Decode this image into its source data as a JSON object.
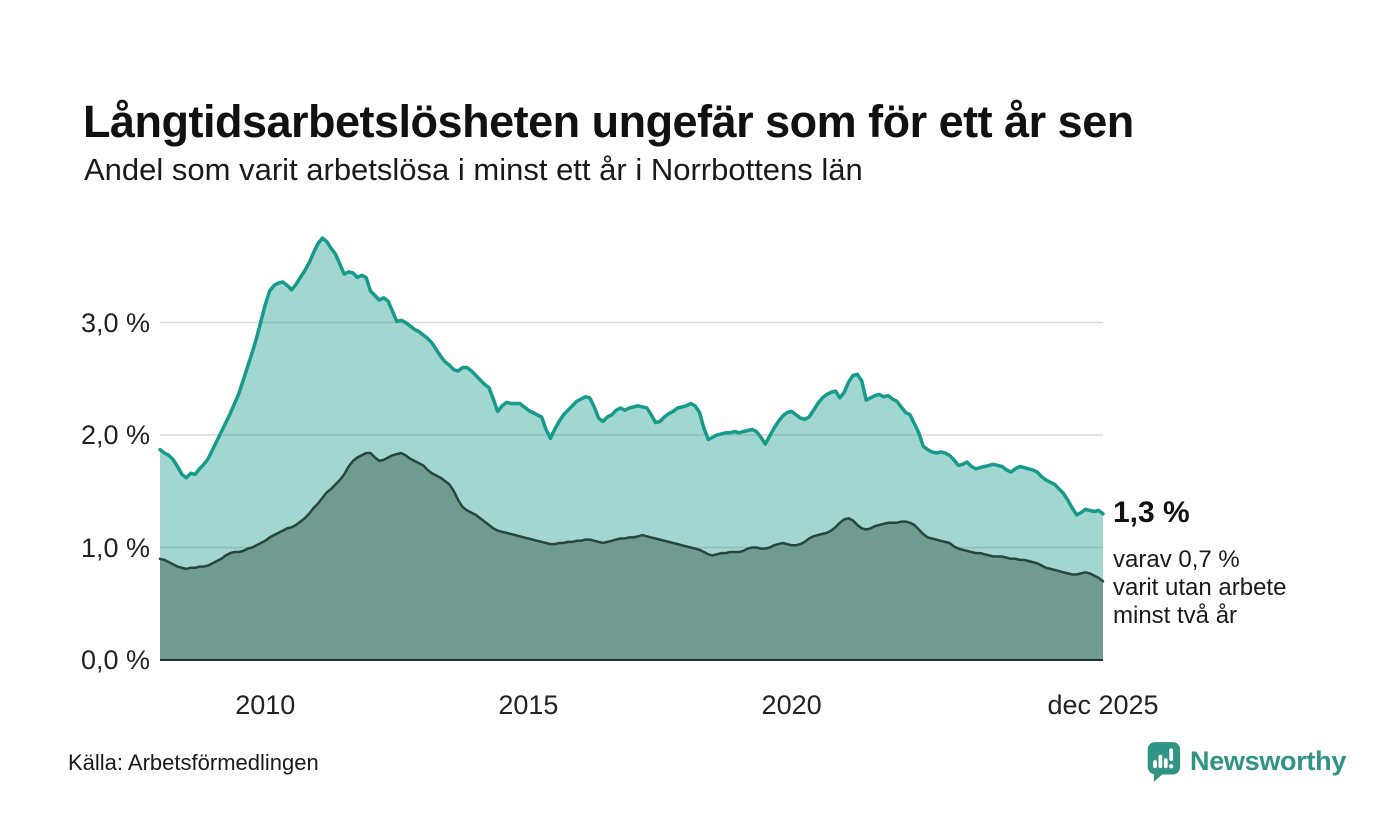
{
  "chart_data": {
    "type": "area",
    "title": "Långtidsarbetslösheten ungefär som för ett år sen",
    "subtitle": "Andel som varit arbetslösa i minst ett år i Norrbottens län",
    "unit": "%",
    "x_start": 2008.0,
    "x_step_months": 1,
    "ylim": [
      0,
      3.87
    ],
    "grid_on": true,
    "legend_position": "none",
    "gridline_values": [
      1.0,
      2.0,
      3.0
    ],
    "y_ticks": [
      {
        "v": 0.0,
        "label": "0,0 %"
      },
      {
        "v": 1.0,
        "label": "1,0 %"
      },
      {
        "v": 2.0,
        "label": "2,0 %"
      },
      {
        "v": 3.0,
        "label": "3,0 %"
      }
    ],
    "x_ticks": [
      {
        "t": 2010.0,
        "label": "2010"
      },
      {
        "t": 2015.0,
        "label": "2015"
      },
      {
        "t": 2020.0,
        "label": "2020"
      },
      {
        "t": 2025.9167,
        "label": "dec 2025"
      }
    ],
    "annotation": {
      "value": "1,3 %",
      "detail": "varav 0,7 %\nvarit utan arbete\nminst två år"
    },
    "colors": {
      "grid": "#d8d8d8",
      "axis": "#22302c",
      "accent_teal": "#169a8b",
      "dark_green": "#2b453e"
    },
    "series": [
      {
        "id": "at_least_one_year",
        "latest_value_pct": 1.3,
        "line_color": "#169a8b",
        "fill_color": "rgba(22,154,139,0.40)",
        "line_width": 3.5,
        "values": [
          1.87,
          1.84,
          1.82,
          1.78,
          1.72,
          1.65,
          1.62,
          1.66,
          1.65,
          1.7,
          1.74,
          1.79,
          1.87,
          1.95,
          2.03,
          2.11,
          2.19,
          2.28,
          2.37,
          2.49,
          2.61,
          2.73,
          2.86,
          3.01,
          3.16,
          3.28,
          3.33,
          3.35,
          3.36,
          3.33,
          3.29,
          3.34,
          3.4,
          3.46,
          3.53,
          3.62,
          3.7,
          3.75,
          3.72,
          3.66,
          3.61,
          3.52,
          3.43,
          3.45,
          3.44,
          3.4,
          3.42,
          3.4,
          3.28,
          3.24,
          3.2,
          3.22,
          3.19,
          3.1,
          3.01,
          3.02,
          3.0,
          2.97,
          2.94,
          2.92,
          2.89,
          2.86,
          2.82,
          2.76,
          2.7,
          2.65,
          2.62,
          2.58,
          2.57,
          2.6,
          2.6,
          2.57,
          2.53,
          2.49,
          2.45,
          2.42,
          2.32,
          2.21,
          2.26,
          2.29,
          2.28,
          2.28,
          2.28,
          2.25,
          2.22,
          2.2,
          2.18,
          2.16,
          2.05,
          1.97,
          2.05,
          2.12,
          2.18,
          2.22,
          2.26,
          2.3,
          2.32,
          2.34,
          2.33,
          2.25,
          2.15,
          2.12,
          2.16,
          2.18,
          2.22,
          2.24,
          2.22,
          2.24,
          2.25,
          2.26,
          2.25,
          2.24,
          2.18,
          2.11,
          2.12,
          2.16,
          2.19,
          2.21,
          2.24,
          2.25,
          2.26,
          2.28,
          2.26,
          2.2,
          2.06,
          1.96,
          1.98,
          2.0,
          2.01,
          2.02,
          2.02,
          2.03,
          2.02,
          2.03,
          2.04,
          2.05,
          2.03,
          1.98,
          1.92,
          1.99,
          2.06,
          2.12,
          2.17,
          2.2,
          2.21,
          2.18,
          2.15,
          2.14,
          2.16,
          2.22,
          2.28,
          2.33,
          2.36,
          2.38,
          2.39,
          2.33,
          2.38,
          2.47,
          2.53,
          2.54,
          2.48,
          2.31,
          2.33,
          2.35,
          2.36,
          2.34,
          2.35,
          2.32,
          2.3,
          2.25,
          2.2,
          2.18,
          2.1,
          2.02,
          1.9,
          1.87,
          1.85,
          1.84,
          1.85,
          1.84,
          1.82,
          1.78,
          1.73,
          1.74,
          1.76,
          1.72,
          1.7,
          1.71,
          1.72,
          1.73,
          1.74,
          1.73,
          1.72,
          1.69,
          1.67,
          1.7,
          1.72,
          1.71,
          1.7,
          1.69,
          1.67,
          1.63,
          1.6,
          1.58,
          1.56,
          1.52,
          1.48,
          1.42,
          1.35,
          1.29,
          1.31,
          1.34,
          1.33,
          1.32,
          1.33,
          1.3
        ]
      },
      {
        "id": "at_least_two_years",
        "latest_value_pct": 0.7,
        "line_color": "#2b453e",
        "fill_color": "#6f9b92",
        "line_width": 2.5,
        "values": [
          0.9,
          0.89,
          0.87,
          0.85,
          0.83,
          0.82,
          0.81,
          0.82,
          0.82,
          0.83,
          0.83,
          0.84,
          0.86,
          0.88,
          0.9,
          0.93,
          0.95,
          0.96,
          0.96,
          0.97,
          0.99,
          1.0,
          1.02,
          1.04,
          1.06,
          1.09,
          1.11,
          1.13,
          1.15,
          1.17,
          1.18,
          1.2,
          1.23,
          1.26,
          1.3,
          1.35,
          1.39,
          1.44,
          1.49,
          1.52,
          1.56,
          1.6,
          1.65,
          1.72,
          1.77,
          1.8,
          1.82,
          1.84,
          1.84,
          1.8,
          1.77,
          1.78,
          1.8,
          1.82,
          1.83,
          1.84,
          1.82,
          1.79,
          1.77,
          1.75,
          1.73,
          1.69,
          1.66,
          1.64,
          1.62,
          1.59,
          1.56,
          1.5,
          1.42,
          1.36,
          1.33,
          1.31,
          1.29,
          1.26,
          1.23,
          1.2,
          1.17,
          1.15,
          1.14,
          1.13,
          1.12,
          1.11,
          1.1,
          1.09,
          1.08,
          1.07,
          1.06,
          1.05,
          1.04,
          1.03,
          1.03,
          1.04,
          1.04,
          1.05,
          1.05,
          1.06,
          1.06,
          1.07,
          1.07,
          1.06,
          1.05,
          1.04,
          1.05,
          1.06,
          1.07,
          1.08,
          1.08,
          1.09,
          1.09,
          1.1,
          1.11,
          1.1,
          1.09,
          1.08,
          1.07,
          1.06,
          1.05,
          1.04,
          1.03,
          1.02,
          1.01,
          1.0,
          0.99,
          0.98,
          0.96,
          0.94,
          0.93,
          0.94,
          0.95,
          0.95,
          0.96,
          0.96,
          0.96,
          0.97,
          0.99,
          1.0,
          1.0,
          0.99,
          0.99,
          1.0,
          1.02,
          1.03,
          1.04,
          1.03,
          1.02,
          1.02,
          1.03,
          1.05,
          1.08,
          1.1,
          1.11,
          1.12,
          1.13,
          1.15,
          1.18,
          1.22,
          1.25,
          1.26,
          1.24,
          1.2,
          1.17,
          1.16,
          1.17,
          1.19,
          1.2,
          1.21,
          1.22,
          1.22,
          1.22,
          1.23,
          1.23,
          1.22,
          1.2,
          1.16,
          1.12,
          1.09,
          1.08,
          1.07,
          1.06,
          1.05,
          1.04,
          1.01,
          0.99,
          0.98,
          0.97,
          0.96,
          0.95,
          0.95,
          0.94,
          0.93,
          0.92,
          0.92,
          0.92,
          0.91,
          0.9,
          0.9,
          0.89,
          0.89,
          0.88,
          0.87,
          0.86,
          0.84,
          0.82,
          0.81,
          0.8,
          0.79,
          0.78,
          0.77,
          0.76,
          0.76,
          0.77,
          0.78,
          0.77,
          0.75,
          0.73,
          0.7
        ]
      }
    ]
  },
  "footer": {
    "source": "Källa: Arbetsförmedlingen",
    "brand": "Newsworthy"
  }
}
